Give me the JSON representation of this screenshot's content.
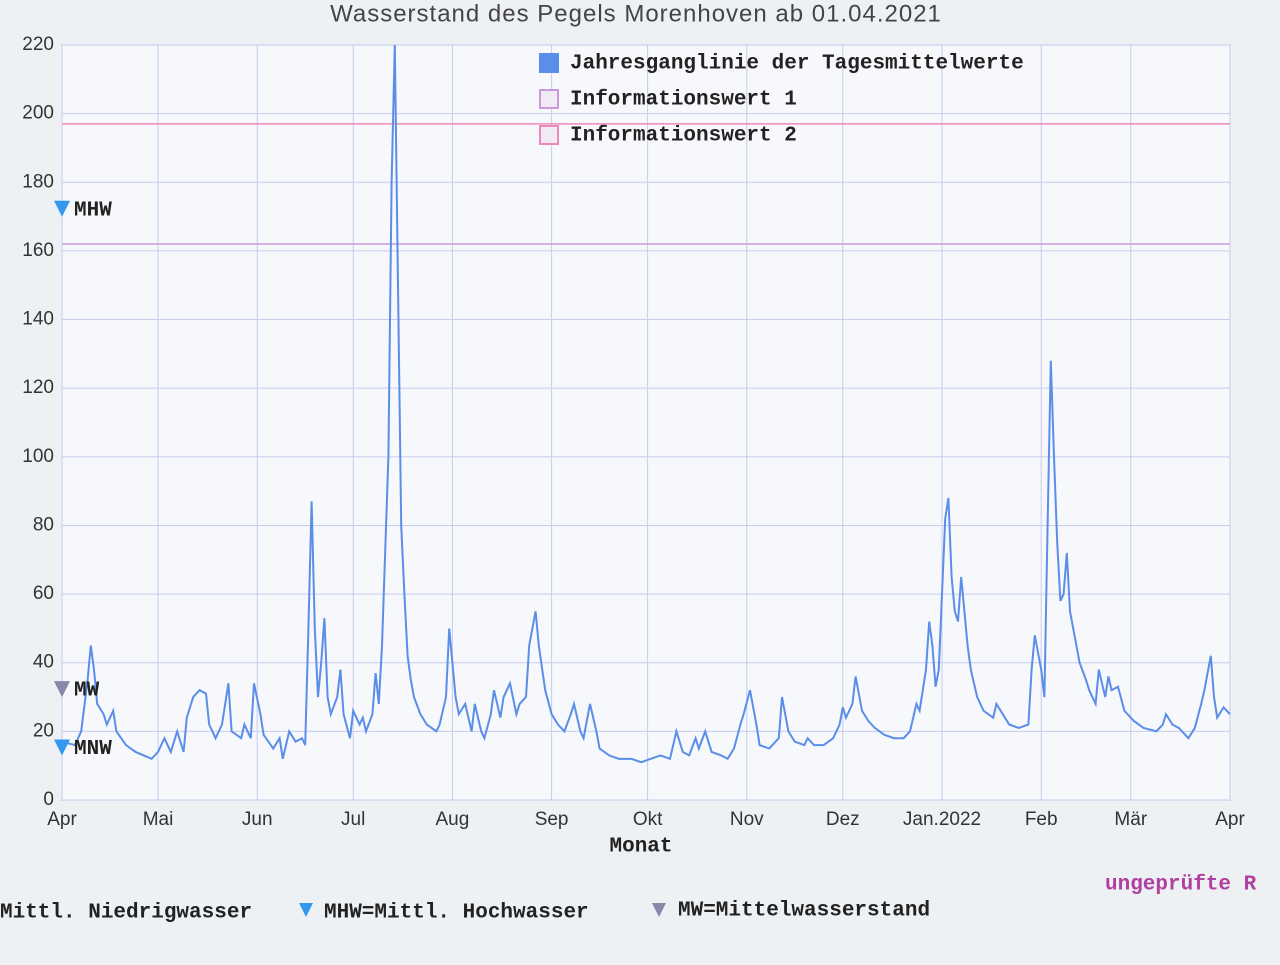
{
  "chart_data": {
    "type": "line",
    "title": "Wasserstand des Pegels Morenhoven ab 01.04.2021",
    "x_label": "Monat",
    "xlim": [
      0,
      365
    ],
    "xticks": [
      {
        "value": 0,
        "label": "Apr"
      },
      {
        "value": 30,
        "label": "Mai"
      },
      {
        "value": 61,
        "label": "Jun"
      },
      {
        "value": 91,
        "label": "Jul"
      },
      {
        "value": 122,
        "label": "Aug"
      },
      {
        "value": 153,
        "label": "Sep"
      },
      {
        "value": 183,
        "label": "Okt"
      },
      {
        "value": 214,
        "label": "Nov"
      },
      {
        "value": 244,
        "label": "Dez"
      },
      {
        "value": 275,
        "label": "Jan.2022"
      },
      {
        "value": 306,
        "label": "Feb"
      },
      {
        "value": 334,
        "label": "Mär"
      },
      {
        "value": 365,
        "label": "Apr"
      }
    ],
    "ylim": [
      0,
      220
    ],
    "yticks": [
      0,
      20,
      40,
      60,
      80,
      100,
      120,
      140,
      160,
      180,
      200,
      220
    ],
    "grid": true,
    "legend_position": "top",
    "series": [
      {
        "name": "Jahresganglinie der Tagesmittelwerte",
        "color": "#5b8ee8",
        "x": [
          0,
          4,
          6,
          8,
          9,
          10,
          11,
          13,
          14,
          16,
          17,
          20,
          23,
          28,
          30,
          32,
          34,
          36,
          38,
          39,
          41,
          43,
          45,
          46,
          48,
          50,
          52,
          53,
          56,
          57,
          59,
          60,
          62,
          63,
          66,
          68,
          69,
          71,
          73,
          75,
          76,
          77,
          78,
          79,
          80,
          81,
          82,
          83,
          84,
          86,
          87,
          88,
          90,
          91,
          93,
          94,
          95,
          97,
          98,
          99,
          100,
          102,
          103,
          104,
          105,
          106,
          107,
          108,
          109,
          110,
          112,
          114,
          117,
          118,
          120,
          121,
          123,
          124,
          126,
          128,
          129,
          131,
          132,
          134,
          135,
          137,
          138,
          140,
          142,
          143,
          145,
          146,
          148,
          149,
          151,
          153,
          155,
          157,
          159,
          160,
          162,
          163,
          165,
          167,
          168,
          171,
          174,
          178,
          181,
          184,
          187,
          190,
          192,
          194,
          196,
          198,
          199,
          201,
          203,
          206,
          208,
          210,
          212,
          213,
          215,
          217,
          218,
          221,
          224,
          225,
          227,
          229,
          232,
          233,
          235,
          238,
          241,
          243,
          244,
          245,
          247,
          248,
          250,
          252,
          254,
          257,
          260,
          263,
          265,
          267,
          268,
          270,
          271,
          272,
          273,
          274,
          275,
          276,
          277,
          278,
          279,
          280,
          281,
          283,
          284,
          286,
          288,
          291,
          292,
          294,
          296,
          299,
          302,
          303,
          304,
          306,
          307,
          308,
          309,
          310,
          311,
          312,
          313,
          314,
          315,
          317,
          318,
          320,
          321,
          323,
          324,
          326,
          327,
          328,
          330,
          332,
          335,
          338,
          342,
          344,
          345,
          347,
          349,
          352,
          354,
          356,
          357,
          359,
          360,
          361,
          363,
          365
        ],
        "values": [
          17,
          16,
          20,
          35,
          45,
          38,
          28,
          25,
          22,
          26,
          20,
          16,
          14,
          12,
          14,
          18,
          14,
          20,
          14,
          24,
          30,
          32,
          31,
          22,
          18,
          22,
          34,
          20,
          18,
          22,
          18,
          34,
          25,
          19,
          15,
          18,
          12,
          20,
          17,
          18,
          16,
          50,
          87,
          50,
          30,
          40,
          53,
          30,
          25,
          30,
          38,
          25,
          18,
          26,
          22,
          24,
          20,
          25,
          37,
          28,
          45,
          100,
          180,
          220,
          150,
          80,
          60,
          42,
          35,
          30,
          25,
          22,
          20,
          22,
          30,
          50,
          30,
          25,
          28,
          20,
          28,
          20,
          18,
          25,
          32,
          24,
          30,
          34,
          25,
          28,
          30,
          45,
          55,
          45,
          32,
          25,
          22,
          20,
          25,
          28,
          20,
          18,
          28,
          20,
          15,
          13,
          12,
          12,
          11,
          12,
          13,
          12,
          20,
          14,
          13,
          18,
          15,
          20,
          14,
          13,
          12,
          15,
          22,
          25,
          32,
          22,
          16,
          15,
          18,
          30,
          20,
          17,
          16,
          18,
          16,
          16,
          18,
          22,
          27,
          24,
          28,
          36,
          26,
          23,
          21,
          19,
          18,
          18,
          20,
          28,
          26,
          38,
          52,
          45,
          33,
          38,
          60,
          82,
          88,
          65,
          55,
          52,
          65,
          45,
          38,
          30,
          26,
          24,
          28,
          25,
          22,
          21,
          22,
          38,
          48,
          38,
          30,
          80,
          128,
          100,
          75,
          58,
          60,
          72,
          55,
          45,
          40,
          35,
          32,
          28,
          38,
          30,
          36,
          32,
          33,
          26,
          23,
          21,
          20,
          22,
          25,
          22,
          21,
          18,
          21,
          28,
          32,
          42,
          30,
          24,
          27,
          25
        ]
      }
    ],
    "thresholds": [
      {
        "name": "Informationswert 1",
        "value": 162,
        "color": "#cc99dd"
      },
      {
        "name": "Informationswert 2",
        "value": 197,
        "color": "#ee88bb"
      }
    ],
    "markers": [
      {
        "label": "MHW",
        "value": 172,
        "color": "#3399ee"
      },
      {
        "label": "MW",
        "value": 32,
        "color": "#8888aa"
      },
      {
        "label": "MNW",
        "value": 15,
        "color": "#3399ee"
      }
    ],
    "footer": {
      "items": [
        "Mittl. Niedrigwasser",
        "MHW=Mittl. Hochwasser",
        "MW=Mittelwasserstand"
      ],
      "note": "ungeprüfte R"
    }
  }
}
